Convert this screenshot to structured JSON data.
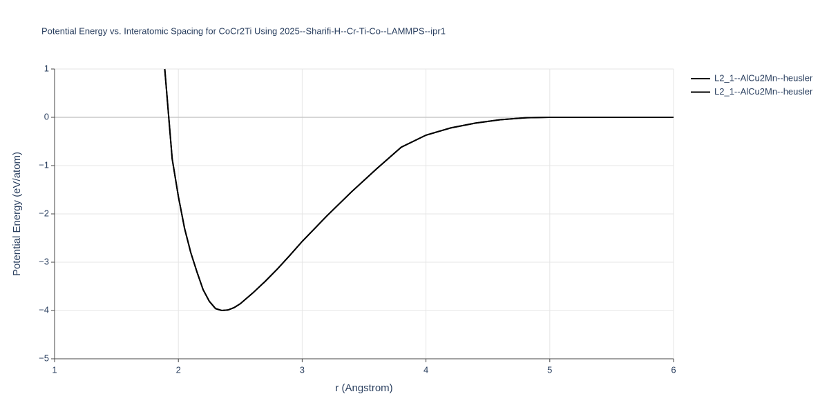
{
  "chart_data": {
    "type": "line",
    "title": "Potential Energy vs. Interatomic Spacing for CoCr2Ti Using 2025--Sharifi-H--Cr-Ti-Co--LAMMPS--ipr1",
    "x_label": "r (Angstrom)",
    "y_label": "Potential Energy (eV/atom)",
    "x": [
      1.89,
      1.95,
      2.0,
      2.05,
      2.1,
      2.15,
      2.2,
      2.25,
      2.3,
      2.35,
      2.4,
      2.45,
      2.5,
      2.6,
      2.7,
      2.8,
      2.9,
      3.0,
      3.2,
      3.4,
      3.6,
      3.8,
      4.0,
      4.2,
      4.4,
      4.6,
      4.8,
      5.0,
      5.5,
      6.0
    ],
    "series": [
      {
        "name": "L2_1--AlCu2Mn--heusler",
        "color": "#000000",
        "values": [
          1.0,
          -0.86,
          -1.64,
          -2.3,
          -2.8,
          -3.2,
          -3.57,
          -3.81,
          -3.96,
          -4.0,
          -3.99,
          -3.94,
          -3.86,
          -3.64,
          -3.4,
          -3.14,
          -2.86,
          -2.57,
          -2.04,
          -1.54,
          -1.07,
          -0.62,
          -0.37,
          -0.22,
          -0.12,
          -0.05,
          -0.01,
          0.0,
          0.0,
          0.0
        ]
      },
      {
        "name": "L2_1--AlCu2Mn--heusler",
        "color": "#000000",
        "values": [
          1.0,
          -0.86,
          -1.64,
          -2.3,
          -2.8,
          -3.2,
          -3.57,
          -3.81,
          -3.96,
          -4.0,
          -3.99,
          -3.94,
          -3.86,
          -3.64,
          -3.4,
          -3.14,
          -2.86,
          -2.57,
          -2.04,
          -1.54,
          -1.07,
          -0.62,
          -0.37,
          -0.22,
          -0.12,
          -0.05,
          -0.01,
          0.0,
          0.0,
          0.0
        ]
      }
    ],
    "xlim": [
      1,
      6
    ],
    "xticks": [
      1,
      2,
      3,
      4,
      5,
      6
    ],
    "ylim": [
      -5,
      1
    ],
    "yticks": [
      {
        "value": -5,
        "label": "−5"
      },
      {
        "value": -4,
        "label": "−4"
      },
      {
        "value": -3,
        "label": "−3"
      },
      {
        "value": -2,
        "label": "−2"
      },
      {
        "value": -1,
        "label": "−1"
      },
      0,
      1
    ],
    "grid": true
  }
}
